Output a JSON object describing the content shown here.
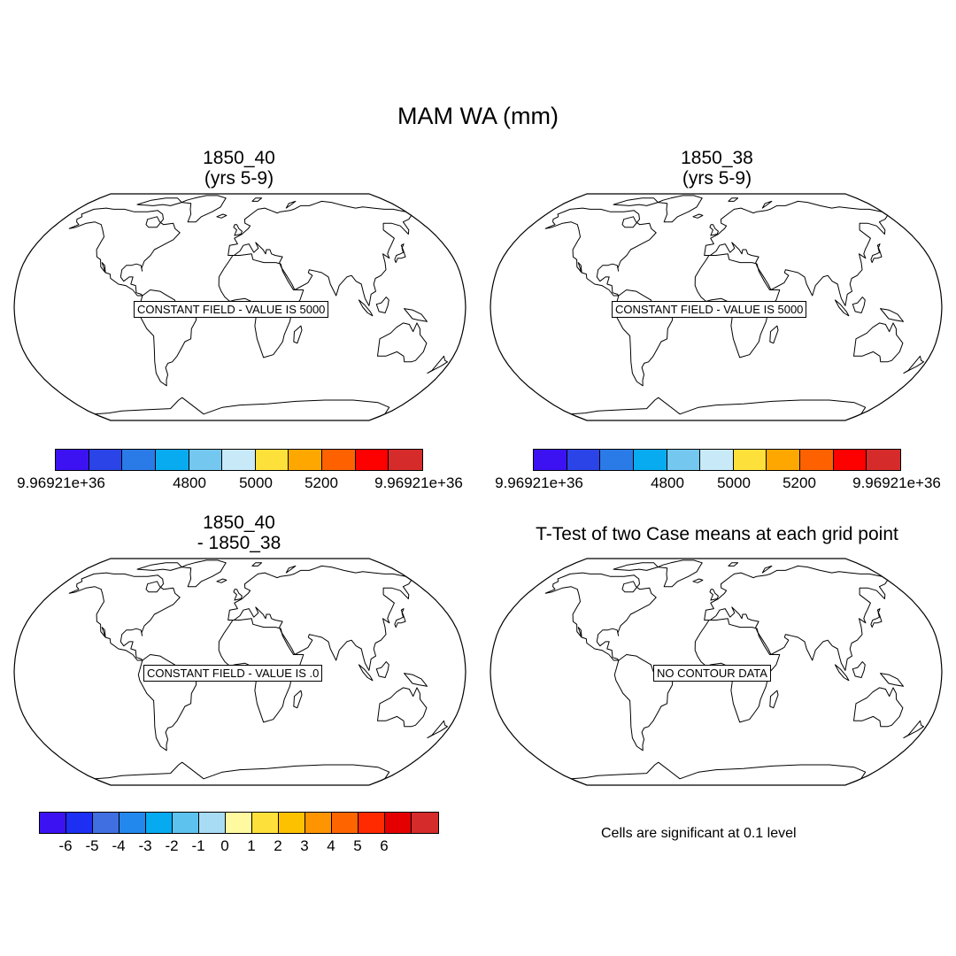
{
  "title": "MAM WA (mm)",
  "panels": [
    {
      "title_line1": "1850_40",
      "title_line2": "(yrs 5-9)",
      "message": "CONSTANT FIELD - VALUE IS 5000"
    },
    {
      "title_line1": "1850_38",
      "title_line2": "(yrs 5-9)",
      "message": "CONSTANT FIELD - VALUE IS 5000"
    },
    {
      "title_line1": "1850_40",
      "title_line2": "- 1850_38",
      "message": "CONSTANT FIELD - VALUE IS .0"
    },
    {
      "title_line1": "T-Test of two Case means at each grid point",
      "title_line2": "",
      "message": "NO CONTOUR DATA"
    }
  ],
  "colorbars": [
    {
      "colors": [
        "#3d12f2",
        "#2b44e8",
        "#2a7ae8",
        "#08abf0",
        "#74c7ee",
        "#c8e9f8",
        "#fde03a",
        "#fda700",
        "#fe6200",
        "#fd0000",
        "#d62b2b"
      ],
      "labels": [
        "9.96921e+36",
        "4800",
        "5000",
        "5200",
        "9.96921e+36"
      ]
    },
    {
      "colors": [
        "#3d12f2",
        "#2b44e8",
        "#2a7ae8",
        "#08abf0",
        "#74c7ee",
        "#c8e9f8",
        "#fde03a",
        "#fda700",
        "#fe6200",
        "#fd0000",
        "#d62b2b"
      ],
      "labels": [
        "9.96921e+36",
        "4800",
        "5000",
        "5200",
        "9.96921e+36"
      ]
    },
    {
      "colors": [
        "#3d12f2",
        "#1c2ff2",
        "#3f6fe0",
        "#2288ee",
        "#05aaf0",
        "#5dc2ee",
        "#a8dcf4",
        "#fffaa0",
        "#fde03a",
        "#fdc100",
        "#fd9400",
        "#fe6500",
        "#ff2a00",
        "#e40000",
        "#d62b2b"
      ],
      "labels": [
        "-6",
        "-5",
        "-4",
        "-3",
        "-2",
        "-1",
        "0",
        "1",
        "2",
        "3",
        "4",
        "5",
        "6"
      ]
    }
  ],
  "note": "Cells are significant at 0.1 level"
}
